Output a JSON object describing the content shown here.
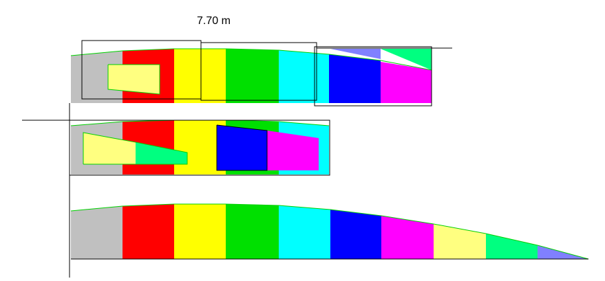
{
  "dimension_label": "7.70 m",
  "colors": {
    "gray": "#c0c0c0",
    "red": "#ff0000",
    "yellow": "#ffff00",
    "green": "#00e000",
    "cyan": "#00ffff",
    "blue": "#0000ff",
    "magenta": "#ff00ff",
    "light_yellow": "#ffff80",
    "spring_green": "#00ff80",
    "lavender": "#8080ff",
    "outline": "#00d000",
    "line": "#000000"
  }
}
